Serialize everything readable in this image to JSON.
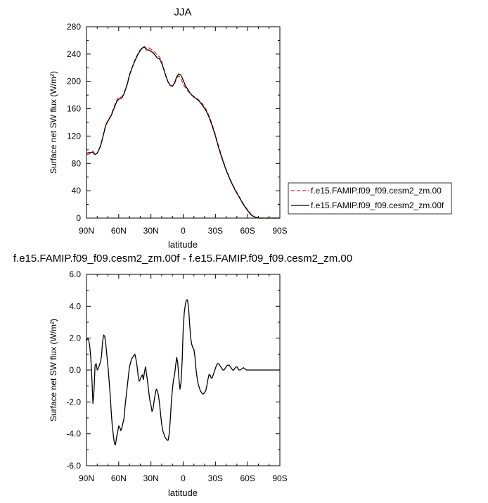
{
  "chart_data": [
    {
      "type": "line",
      "title": "JJA",
      "xlabel": "latitude",
      "ylabel": "Surface net SW flux (W/m²)",
      "xlim": [
        90,
        -90
      ],
      "ylim": [
        0,
        280
      ],
      "x_ticks": [
        90,
        60,
        30,
        0,
        -30,
        -60,
        -90
      ],
      "x_tick_labels": [
        "90N",
        "60N",
        "30N",
        "0",
        "30S",
        "60S",
        "90S"
      ],
      "y_ticks": [
        0,
        40,
        80,
        120,
        160,
        200,
        240,
        280
      ],
      "y_tick_labels": [
        "0",
        "40",
        "80",
        "120",
        "160",
        "200",
        "240",
        "280"
      ],
      "legend_placement": "outside-right",
      "series": [
        {
          "name": "f.e15.FAMIP.f09_f09.cesm2_zm.00",
          "color": "#e8262b",
          "dash": "dashed",
          "x": [
            90,
            87,
            84,
            82,
            80,
            77,
            75,
            72,
            70,
            67,
            65,
            62,
            60,
            57,
            55,
            52,
            50,
            47,
            45,
            42,
            40,
            38,
            36,
            34,
            32,
            30,
            28,
            26,
            24,
            22,
            20,
            18,
            16,
            14,
            12,
            10,
            8,
            6,
            4,
            2,
            0,
            -2,
            -4,
            -6,
            -8,
            -10,
            -12,
            -15,
            -18,
            -21,
            -24,
            -27,
            -30,
            -33,
            -36,
            -40,
            -44,
            -48,
            -52,
            -56,
            -60,
            -63,
            -66,
            -68,
            -70,
            -72,
            -75,
            -80,
            -85,
            -90
          ],
          "y": [
            93,
            94,
            98,
            93,
            95,
            106,
            118,
            137,
            143,
            151,
            160,
            172,
            177,
            177,
            183,
            197,
            210,
            223,
            231,
            241,
            246,
            250,
            251,
            248,
            249,
            247,
            245,
            242,
            238,
            236,
            229,
            218,
            208,
            199,
            194,
            193,
            197,
            205,
            208,
            204,
            196,
            191,
            187,
            183,
            180,
            178,
            176,
            172,
            167,
            160,
            150,
            137,
            122,
            105,
            90,
            71,
            56,
            43,
            32,
            21,
            12,
            6,
            2,
            1,
            0,
            0,
            0,
            0,
            0,
            0
          ]
        },
        {
          "name": "f.e15.FAMIP.f09_f09.cesm2_zm.00f",
          "color": "#000000",
          "dash": "solid",
          "x": [
            90,
            87,
            84,
            82,
            80,
            77,
            75,
            72,
            70,
            67,
            65,
            62,
            60,
            57,
            55,
            52,
            50,
            47,
            45,
            42,
            40,
            38,
            36,
            34,
            32,
            30,
            28,
            26,
            24,
            22,
            20,
            18,
            16,
            14,
            12,
            10,
            8,
            6,
            4,
            2,
            0,
            -2,
            -4,
            -6,
            -8,
            -10,
            -12,
            -15,
            -18,
            -21,
            -24,
            -27,
            -30,
            -33,
            -36,
            -40,
            -44,
            -48,
            -52,
            -56,
            -60,
            -63,
            -66,
            -68,
            -70,
            -72,
            -75,
            -80,
            -85,
            -90
          ],
          "y": [
            95,
            96,
            96,
            93,
            95,
            105,
            117,
            136,
            142,
            150,
            158,
            170,
            174,
            176,
            182,
            196,
            209,
            222,
            230,
            240,
            245,
            249,
            250,
            246,
            246,
            244,
            242,
            238,
            234,
            233,
            227,
            217,
            207,
            199,
            194,
            193,
            198,
            207,
            211,
            209,
            202,
            194,
            189,
            184,
            180,
            177,
            175,
            171,
            165,
            158,
            148,
            135,
            120,
            103,
            88,
            70,
            55,
            42,
            31,
            20,
            11,
            5,
            2,
            1,
            0,
            0,
            0,
            0,
            0,
            0
          ]
        }
      ]
    },
    {
      "type": "line",
      "title": "f.e15.FAMIP.f09_f09.cesm2_zm.00f - f.e15.FAMIP.f09_f09.cesm2_zm.00",
      "xlabel": "latitude",
      "ylabel": "Surface net SW flux (W/m²)",
      "xlim": [
        90,
        -90
      ],
      "ylim": [
        -6,
        6
      ],
      "x_ticks": [
        90,
        60,
        30,
        0,
        -30,
        -60,
        -90
      ],
      "x_tick_labels": [
        "90N",
        "60N",
        "30N",
        "0",
        "30S",
        "60S",
        "90S"
      ],
      "y_ticks": [
        -6,
        -4,
        -2,
        0,
        2,
        4,
        6
      ],
      "y_tick_labels": [
        "-6.0",
        "-4.0",
        "-2.0",
        "0.0",
        "2.0",
        "4.0",
        "6.0"
      ],
      "series": [
        {
          "color": "#000000",
          "dash": "solid",
          "x": [
            90,
            89,
            88,
            87,
            86,
            85,
            84,
            83,
            82,
            81,
            80,
            79,
            78,
            77,
            76,
            75,
            74,
            73,
            72,
            71,
            70,
            69,
            68,
            67,
            66,
            65,
            64,
            63,
            62,
            61,
            60,
            59,
            58,
            57,
            56,
            55,
            54,
            52,
            50,
            48,
            47,
            46,
            45,
            44,
            43,
            42,
            41,
            40,
            39,
            38,
            37,
            36,
            35,
            34,
            33,
            32,
            31,
            30,
            29,
            28,
            27,
            26,
            25,
            24,
            23,
            22,
            21,
            20,
            19,
            18,
            17,
            16,
            15,
            14,
            13,
            12,
            11,
            10,
            9,
            8,
            7,
            6,
            5,
            4,
            3,
            2,
            1,
            0,
            -1,
            -2,
            -3,
            -4,
            -5,
            -6,
            -7,
            -8,
            -9,
            -10,
            -11,
            -12,
            -13,
            -14,
            -15,
            -16,
            -17,
            -18,
            -19,
            -20,
            -21,
            -22,
            -23,
            -24,
            -25,
            -26,
            -27,
            -28,
            -29,
            -30,
            -31,
            -32,
            -33,
            -34,
            -35,
            -36,
            -37,
            -38,
            -39,
            -40,
            -41,
            -42,
            -43,
            -44,
            -45,
            -46,
            -47,
            -48,
            -49,
            -50,
            -51,
            -52,
            -53,
            -54,
            -55,
            -56,
            -57,
            -58,
            -59,
            -60,
            -62,
            -64,
            -66,
            -70,
            -75,
            -80,
            -85,
            -90
          ],
          "y": [
            1.8,
            2.0,
            1.9,
            1.5,
            0.8,
            -0.5,
            -2.1,
            -1.3,
            0.3,
            0.4,
            0.0,
            0.1,
            0.3,
            0.5,
            0.9,
            1.8,
            2.2,
            2.1,
            1.6,
            0.9,
            0.2,
            -0.6,
            -1.5,
            -2.6,
            -3.5,
            -4.1,
            -4.6,
            -4.7,
            -4.2,
            -3.9,
            -3.5,
            -3.6,
            -3.8,
            -3.6,
            -3.3,
            -3.0,
            -2.2,
            -1.0,
            0.2,
            0.7,
            0.8,
            0.9,
            1.0,
            0.7,
            0.3,
            -0.3,
            -0.7,
            -0.6,
            -0.4,
            -0.3,
            -0.6,
            -0.1,
            0.2,
            -0.3,
            -0.8,
            -1.4,
            -1.9,
            -2.2,
            -2.6,
            -2.4,
            -1.9,
            -1.5,
            -1.2,
            -1.3,
            -1.6,
            -2.1,
            -2.8,
            -3.4,
            -3.8,
            -4.0,
            -4.2,
            -4.3,
            -4.4,
            -4.4,
            -4.0,
            -3.1,
            -2.0,
            -1.2,
            -0.6,
            -0.3,
            0.3,
            0.8,
            0.4,
            -0.5,
            -1.2,
            -0.8,
            0.5,
            2.5,
            3.6,
            4.1,
            4.4,
            4.4,
            3.9,
            2.9,
            2.0,
            1.6,
            1.4,
            1.3,
            0.8,
            0.0,
            -0.5,
            -0.9,
            -1.1,
            -1.3,
            -1.4,
            -1.5,
            -1.5,
            -1.4,
            -1.3,
            -1.0,
            -0.6,
            -0.3,
            -0.3,
            -0.5,
            -0.5,
            -0.3,
            -0.1,
            0.1,
            0.3,
            0.4,
            0.4,
            0.3,
            0.2,
            0.1,
            0.0,
            0.0,
            0.1,
            0.2,
            0.3,
            0.3,
            0.3,
            0.2,
            0.1,
            0.0,
            0.0,
            0.1,
            0.2,
            0.2,
            0.1,
            0.0,
            0.0,
            0.05,
            0.1,
            0.15,
            0.1,
            0.05,
            0.0,
            0.0,
            0.0,
            0.0,
            0.0,
            0.0,
            0.0,
            0.0,
            0.0,
            0.0
          ]
        }
      ]
    }
  ]
}
